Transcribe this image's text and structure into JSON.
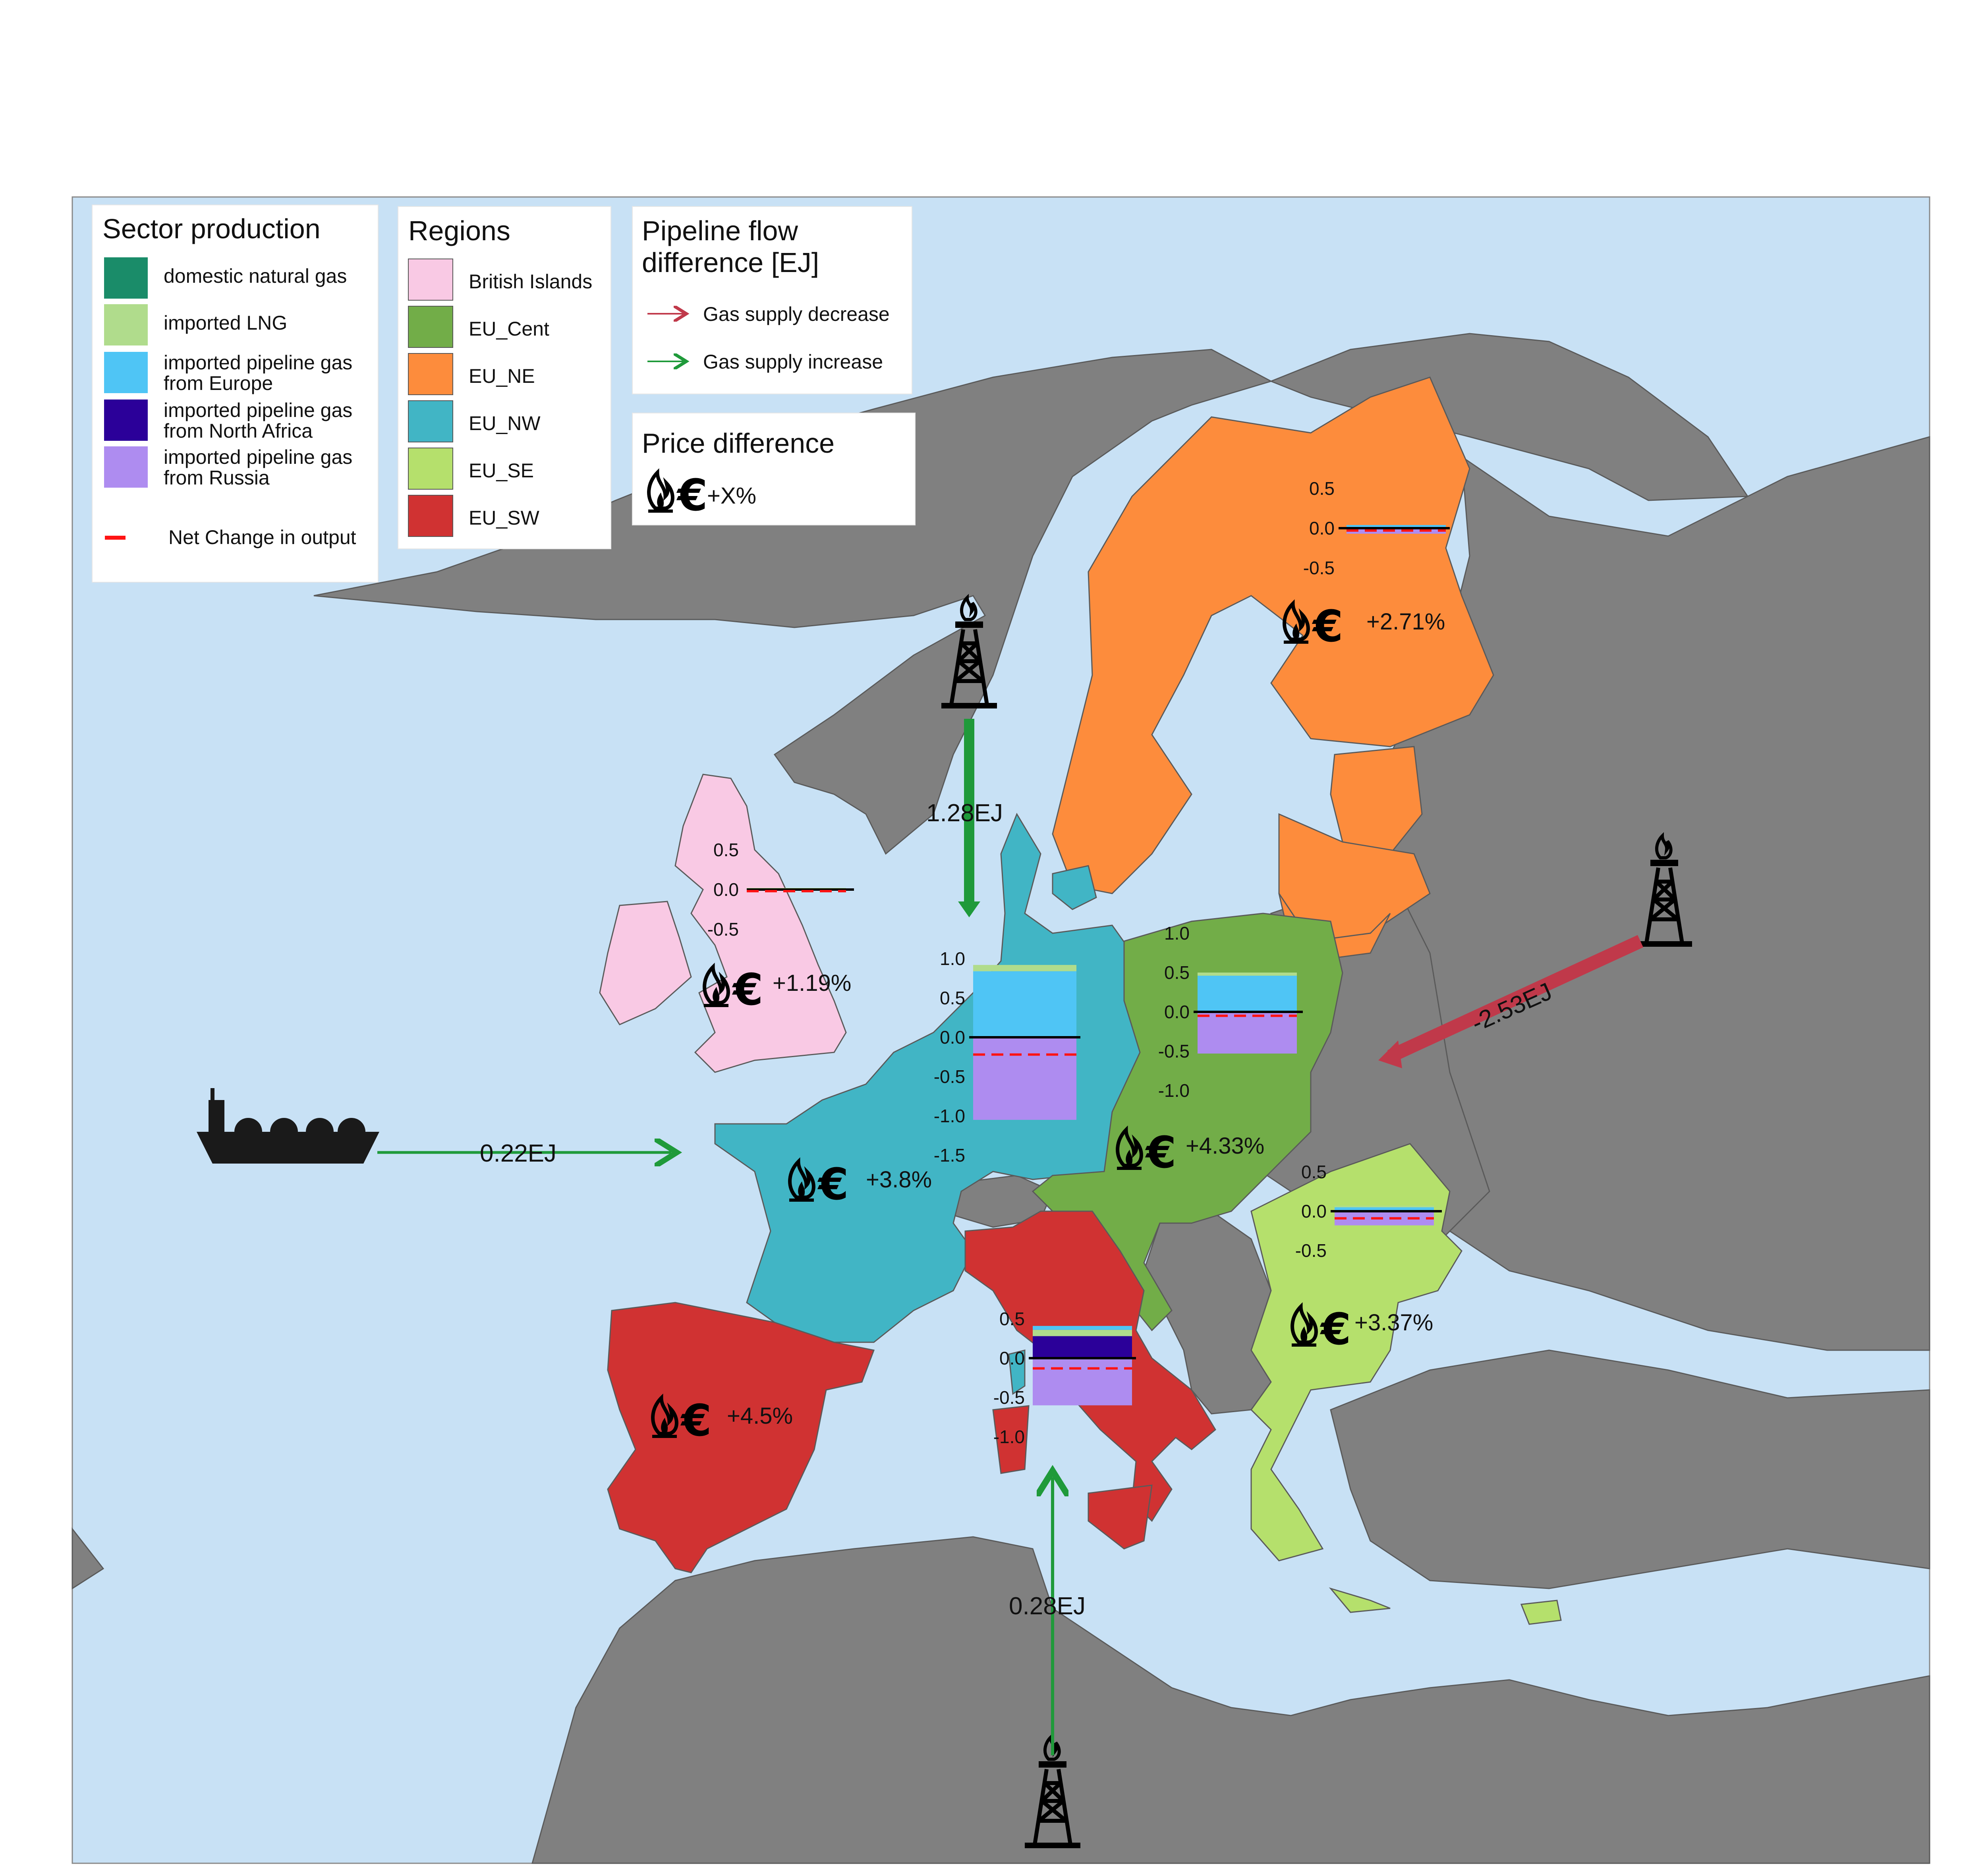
{
  "colors": {
    "sea": "#c8e1f5",
    "land_other": "#808080",
    "border": "#5a5a5a",
    "british_islands": "#f9c9e4",
    "eu_cent": "#72ad48",
    "eu_ne": "#fd8c3c",
    "eu_nw": "#41b5c5",
    "eu_se": "#b5e06c",
    "eu_sw": "#d03232",
    "domestic_natural_gas": "#1a8c69",
    "imported_lng": "#b0dc8c",
    "pipeline_europe": "#4fc5f5",
    "pipeline_north_africa": "#2b0099",
    "pipeline_russia": "#ae8cf0",
    "net_change": "#ff1414",
    "increase": "#1f9a3a",
    "decrease": "#c0394a"
  },
  "legend_sector": {
    "title": "Sector production",
    "items": [
      {
        "label": "domestic natural gas",
        "color": "#1a8c69"
      },
      {
        "label": "imported LNG",
        "color": "#b0dc8c"
      },
      {
        "label": "imported pipeline gas",
        "label2": "from Europe",
        "color": "#4fc5f5"
      },
      {
        "label": "imported pipeline gas",
        "label2": "from North Africa",
        "color": "#2b0099"
      },
      {
        "label": "imported pipeline gas",
        "label2": "from Russia",
        "color": "#ae8cf0"
      }
    ],
    "net_change_label": "Net Change in output"
  },
  "legend_regions": {
    "title": "Regions",
    "items": [
      {
        "label": "British Islands",
        "color": "#f9c9e4"
      },
      {
        "label": "EU_Cent",
        "color": "#72ad48"
      },
      {
        "label": "EU_NE",
        "color": "#fd8c3c"
      },
      {
        "label": "EU_NW",
        "color": "#41b5c5"
      },
      {
        "label": "EU_SE",
        "color": "#b5e06c"
      },
      {
        "label": "EU_SW",
        "color": "#d03232"
      }
    ]
  },
  "legend_flow": {
    "title_line1": "Pipeline flow",
    "title_line2": "difference [EJ]",
    "decrease_label": "Gas supply decrease",
    "increase_label": "Gas supply increase"
  },
  "legend_price": {
    "title": "Price difference",
    "example": "+X%"
  },
  "flows": [
    {
      "label": "1.28EJ",
      "from": "Norway",
      "direction": "increase"
    },
    {
      "label": "-2.53EJ",
      "from": "Russia",
      "direction": "decrease"
    },
    {
      "label": "0.22EJ",
      "from": "LNG",
      "direction": "increase"
    },
    {
      "label": "0.28EJ",
      "from": "North Africa",
      "direction": "increase"
    }
  ],
  "price_changes": [
    {
      "region": "EU_NE",
      "value": "+2.71%"
    },
    {
      "region": "British Islands",
      "value": "+1.19%"
    },
    {
      "region": "EU_Cent",
      "value": "+4.33%"
    },
    {
      "region": "EU_NW",
      "value": "+3.8%"
    },
    {
      "region": "EU_SE",
      "value": "+3.37%"
    },
    {
      "region": "EU_SW",
      "value": "+4.5%"
    }
  ],
  "chart_data": [
    {
      "type": "bar",
      "region": "EU_NE",
      "ticks": [
        "0.5",
        "0.0",
        "-0.5"
      ],
      "ylim": [
        -0.5,
        0.5
      ],
      "series": [
        {
          "name": "imported pipeline gas from Europe",
          "values": [
            0.04
          ]
        },
        {
          "name": "imported pipeline gas from Russia",
          "values": [
            -0.07
          ]
        }
      ],
      "net_change": -0.03
    },
    {
      "type": "bar",
      "region": "British Islands",
      "ticks": [
        "0.5",
        "0.0",
        "-0.5"
      ],
      "ylim": [
        -0.5,
        0.5
      ],
      "series": [
        {
          "name": "imported pipeline gas from Europe",
          "values": [
            0.01
          ]
        },
        {
          "name": "imported LNG",
          "values": [
            0.01
          ]
        }
      ],
      "net_change": -0.02
    },
    {
      "type": "bar",
      "region": "EU_NW",
      "ticks": [
        "1.0",
        "0.5",
        "0.0",
        "-0.5",
        "-1.0",
        "-1.5"
      ],
      "ylim": [
        -1.5,
        1.0
      ],
      "series": [
        {
          "name": "imported pipeline gas from Europe",
          "values": [
            0.84
          ]
        },
        {
          "name": "imported LNG",
          "values": [
            0.08
          ]
        },
        {
          "name": "imported pipeline gas from Russia",
          "values": [
            -1.05
          ]
        }
      ],
      "net_change": -0.22
    },
    {
      "type": "bar",
      "region": "EU_Cent",
      "ticks": [
        "1.0",
        "0.5",
        "0.0",
        "-0.5",
        "-1.0"
      ],
      "ylim": [
        -1.0,
        1.0
      ],
      "series": [
        {
          "name": "imported pipeline gas from Europe",
          "values": [
            0.46
          ]
        },
        {
          "name": "imported LNG",
          "values": [
            0.04
          ]
        },
        {
          "name": "imported pipeline gas from Russia",
          "values": [
            -0.53
          ]
        }
      ],
      "net_change": -0.05
    },
    {
      "type": "bar",
      "region": "EU_SE",
      "ticks": [
        "0.5",
        "0.0",
        "-0.5"
      ],
      "ylim": [
        -0.5,
        0.5
      ],
      "series": [
        {
          "name": "imported pipeline gas from Europe",
          "values": [
            0.05
          ]
        },
        {
          "name": "imported LNG",
          "values": [
            0.02
          ]
        },
        {
          "name": "imported pipeline gas from Russia",
          "values": [
            -0.18
          ]
        }
      ],
      "net_change": -0.09
    },
    {
      "type": "bar",
      "region": "EU_SW",
      "ticks": [
        "0.5",
        "0.0",
        "-0.5",
        "-1.0"
      ],
      "ylim": [
        -1.0,
        0.5
      ],
      "series": [
        {
          "name": "imported pipeline gas from North Africa",
          "values": [
            0.28
          ]
        },
        {
          "name": "imported LNG",
          "values": [
            0.08
          ]
        },
        {
          "name": "imported pipeline gas from Europe",
          "values": [
            0.05
          ]
        },
        {
          "name": "imported pipeline gas from Russia",
          "values": [
            -0.6
          ]
        }
      ],
      "net_change": -0.13
    }
  ]
}
